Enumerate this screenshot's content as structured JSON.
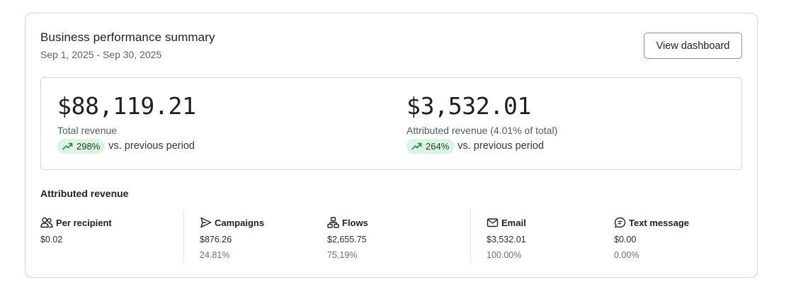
{
  "header": {
    "title": "Business performance summary",
    "date_range": "Sep 1, 2025 - Sep 30, 2025",
    "dashboard_button": "View dashboard"
  },
  "summary": {
    "total": {
      "value": "$88,119.21",
      "label": "Total revenue",
      "change": "298%",
      "comparison": "vs. previous period"
    },
    "attributed": {
      "value": "$3,532.01",
      "label": "Attributed revenue (4.01% of total)",
      "change": "264%",
      "comparison": "vs. previous period"
    }
  },
  "attributed_section": {
    "title": "Attributed revenue",
    "stats": [
      {
        "icon": "people-icon",
        "label": "Per recipient",
        "value": "$0.02",
        "percent": ""
      },
      {
        "icon": "send-icon",
        "label": "Campaigns",
        "value": "$876.26",
        "percent": "24.81%"
      },
      {
        "icon": "flow-icon",
        "label": "Flows",
        "value": "$2,655.75",
        "percent": "75.19%"
      },
      {
        "icon": "mail-icon",
        "label": "Email",
        "value": "$3,532.01",
        "percent": "100.00%"
      },
      {
        "icon": "sms-icon",
        "label": "Text message",
        "value": "$0.00",
        "percent": "0.00%"
      }
    ]
  },
  "colors": {
    "positive_pill_bg": "#d9f5e1",
    "positive_icon": "#1f7a3d",
    "border": "#d4d4d6"
  }
}
